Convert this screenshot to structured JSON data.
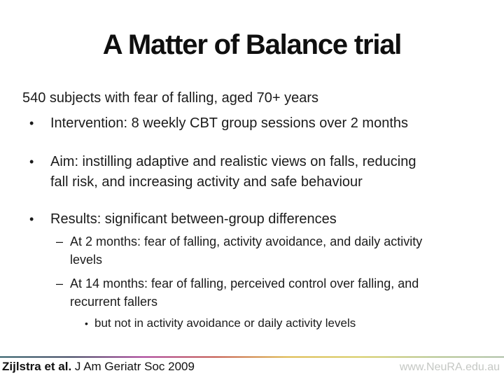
{
  "slide": {
    "title": "A Matter of Balance trial",
    "body": {
      "intro": "540 subjects with fear of falling, aged 70+ years",
      "items": [
        {
          "level": 1,
          "marker": "•",
          "lines": [
            "Intervention: 8 weekly CBT group sessions over 2 months"
          ]
        },
        {
          "level": 1,
          "marker": "•",
          "lines": [
            "Aim: instilling adaptive and realistic views on falls, reducing",
            "fall risk, and increasing activity and safe behaviour"
          ]
        },
        {
          "level": 1,
          "marker": "•",
          "lines": [
            "Results: significant between-group differences"
          ]
        },
        {
          "level": 2,
          "marker": "–",
          "lines": [
            "At 2 months: fear of falling, activity avoidance, and daily activity",
            "levels"
          ]
        },
        {
          "level": 2,
          "marker": "–",
          "lines": [
            "At 14 months: fear of falling, perceived control over falling, and",
            "recurrent fallers"
          ]
        },
        {
          "level": 3,
          "marker": "•",
          "lines": [
            "but not in activity avoidance or daily activity levels"
          ]
        }
      ]
    },
    "footer": {
      "citation_author": "Zijlstra et al.",
      "citation_journal": " J Am Geriatr Soc 2009",
      "website": "www.NeuRA.edu.au"
    }
  },
  "colors": {
    "title_text": "#0f0f0f",
    "body_text": "#1b1b1b",
    "website_text": "#c5c8c4",
    "divider_gradient": [
      "#2f5d68",
      "#3f4560",
      "#a83d96",
      "#c4574b",
      "#ddb84a",
      "#d6cc63",
      "#b5c58e",
      "#adc0a6"
    ]
  }
}
